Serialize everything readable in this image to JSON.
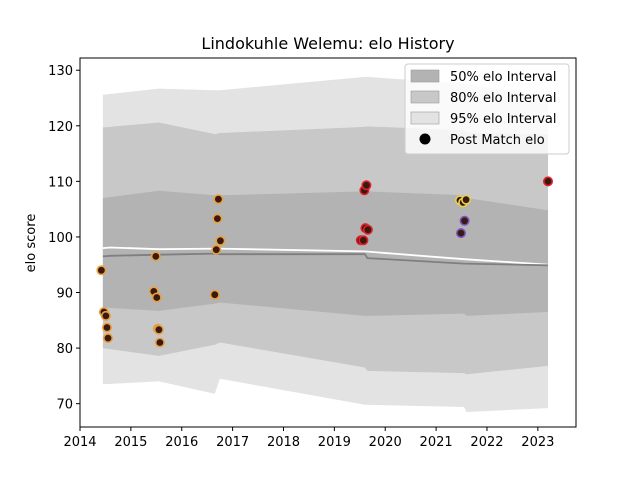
{
  "chart_data": {
    "type": "line",
    "title": "Lindokuhle Welemu: elo History",
    "xlabel": "",
    "ylabel": "elo score",
    "xlim": [
      2014.0,
      2023.75
    ],
    "ylim": [
      65.8,
      132.2
    ],
    "xticks": [
      2014,
      2015,
      2016,
      2017,
      2018,
      2019,
      2020,
      2021,
      2022,
      2023
    ],
    "yticks": [
      70,
      80,
      90,
      100,
      110,
      120,
      130
    ],
    "grid": false,
    "legend_position": "top-right",
    "legend": [
      {
        "label": "50% elo Interval",
        "kind": "band",
        "color": "#b3b3b3"
      },
      {
        "label": "80% elo Interval",
        "kind": "band",
        "color": "#c8c8c8"
      },
      {
        "label": "95% elo Interval",
        "kind": "band",
        "color": "#e3e3e3"
      },
      {
        "label": "Post Match elo",
        "kind": "marker",
        "color": "#000000"
      }
    ],
    "bands": [
      {
        "level": "95%",
        "color": "#e3e3e3",
        "x": [
          2014.45,
          2015.55,
          2016.65,
          2016.75,
          2019.6,
          2019.65,
          2021.55,
          2021.6,
          2023.2
        ],
        "upper": [
          125.6,
          126.7,
          126.4,
          126.4,
          128.8,
          128.8,
          127.6,
          127.5,
          125.2
        ],
        "lower": [
          73.5,
          74.0,
          71.8,
          74.5,
          69.8,
          69.8,
          69.4,
          68.5,
          69.2
        ]
      },
      {
        "level": "80%",
        "color": "#c8c8c8",
        "x": [
          2014.45,
          2015.55,
          2016.65,
          2016.75,
          2019.6,
          2019.65,
          2021.55,
          2021.6,
          2023.2
        ],
        "upper": [
          119.7,
          120.6,
          118.5,
          118.7,
          119.8,
          119.9,
          119.2,
          118.8,
          118.4
        ],
        "lower": [
          80.0,
          78.6,
          80.6,
          81.0,
          76.5,
          75.9,
          75.5,
          75.3,
          76.8
        ]
      },
      {
        "level": "50%",
        "color": "#b3b3b3",
        "x": [
          2014.45,
          2015.55,
          2016.65,
          2016.75,
          2019.6,
          2019.65,
          2021.55,
          2021.6,
          2023.2
        ],
        "upper": [
          107.0,
          108.3,
          107.5,
          107.5,
          108.2,
          108.2,
          107.5,
          107.0,
          104.8
        ],
        "lower": [
          87.3,
          86.7,
          88.0,
          88.2,
          85.8,
          85.8,
          86.2,
          85.8,
          86.5
        ]
      }
    ],
    "series": [
      {
        "kind": "mean",
        "color": "#ffffff",
        "x": [
          2014.45,
          2014.6,
          2015.55,
          2016.7,
          2019.6,
          2021.55,
          2023.2
        ],
        "y": [
          98.0,
          98.1,
          97.8,
          97.9,
          97.4,
          96.0,
          95.0
        ]
      },
      {
        "kind": "median",
        "color": "#7f7f7f",
        "x": [
          2014.45,
          2014.6,
          2015.55,
          2016.65,
          2016.75,
          2019.6,
          2019.65,
          2021.55,
          2023.2
        ],
        "y": [
          96.5,
          96.6,
          96.8,
          97.0,
          96.9,
          96.9,
          96.2,
          95.2,
          94.9
        ]
      }
    ],
    "points": [
      {
        "x": 2014.42,
        "y": 94.0,
        "ring": "#e8a040"
      },
      {
        "x": 2014.47,
        "y": 86.5,
        "ring": "#e8a040"
      },
      {
        "x": 2014.51,
        "y": 85.8,
        "ring": "#e8a040"
      },
      {
        "x": 2014.53,
        "y": 83.7,
        "ring": "#e8a040"
      },
      {
        "x": 2014.55,
        "y": 81.8,
        "ring": "#e8a040"
      },
      {
        "x": 2015.45,
        "y": 90.2,
        "ring": "#e8a040"
      },
      {
        "x": 2015.49,
        "y": 96.5,
        "ring": "#e8a040"
      },
      {
        "x": 2015.51,
        "y": 89.1,
        "ring": "#e8a040"
      },
      {
        "x": 2015.53,
        "y": 83.5,
        "ring": "#e8a040"
      },
      {
        "x": 2015.55,
        "y": 83.3,
        "ring": "#e8a040"
      },
      {
        "x": 2015.57,
        "y": 81.0,
        "ring": "#e8a040"
      },
      {
        "x": 2016.65,
        "y": 89.6,
        "ring": "#e8a040"
      },
      {
        "x": 2016.68,
        "y": 97.7,
        "ring": "#e8a040"
      },
      {
        "x": 2016.7,
        "y": 103.3,
        "ring": "#e8a040"
      },
      {
        "x": 2016.72,
        "y": 106.8,
        "ring": "#e8a040"
      },
      {
        "x": 2016.76,
        "y": 99.3,
        "ring": "#e8a040"
      },
      {
        "x": 2019.52,
        "y": 99.4,
        "ring": "#e0202a"
      },
      {
        "x": 2019.57,
        "y": 99.4,
        "ring": "#e0202a"
      },
      {
        "x": 2019.59,
        "y": 108.4,
        "ring": "#e0202a"
      },
      {
        "x": 2019.61,
        "y": 101.6,
        "ring": "#e0202a"
      },
      {
        "x": 2019.63,
        "y": 109.3,
        "ring": "#e0202a"
      },
      {
        "x": 2019.66,
        "y": 101.3,
        "ring": "#e0202a"
      },
      {
        "x": 2021.47,
        "y": 106.6,
        "ring": "#e8d050"
      },
      {
        "x": 2021.49,
        "y": 100.7,
        "ring": "#7a52c0"
      },
      {
        "x": 2021.53,
        "y": 106.2,
        "ring": "#e8d050"
      },
      {
        "x": 2021.56,
        "y": 102.9,
        "ring": "#7a52c0"
      },
      {
        "x": 2021.59,
        "y": 106.7,
        "ring": "#e8d050"
      },
      {
        "x": 2023.2,
        "y": 110.0,
        "ring": "#e0202a"
      }
    ]
  }
}
